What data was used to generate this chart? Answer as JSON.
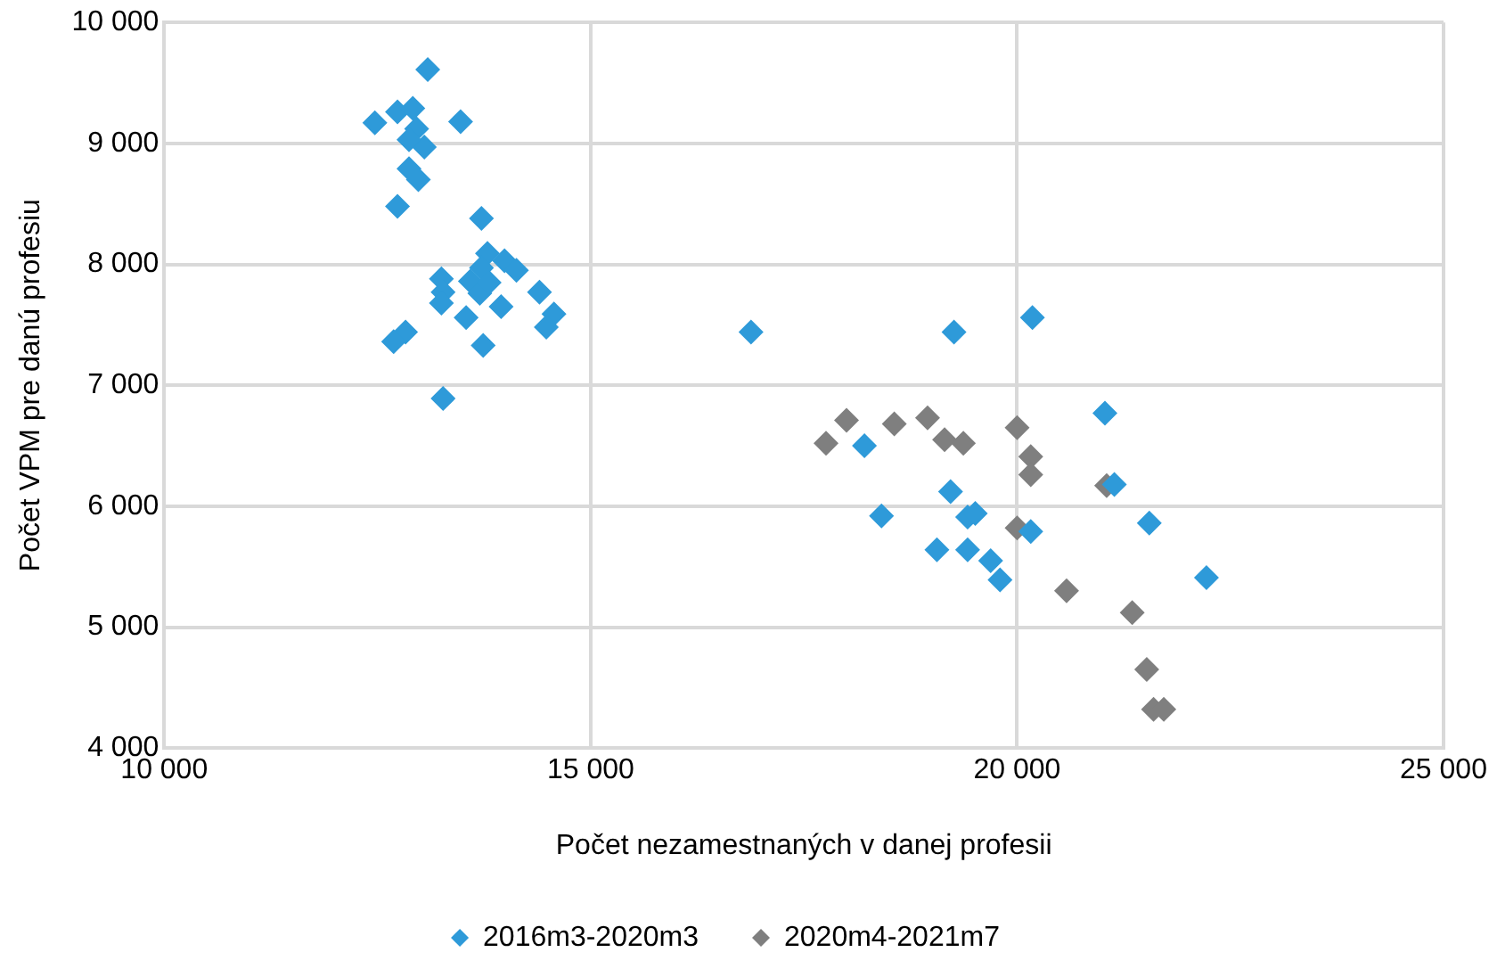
{
  "chart_data": {
    "type": "scatter",
    "xlabel": "Počet nezamestnaných v danej profesii",
    "ylabel": "Počet VPM pre danú profesiu",
    "xlim": [
      10000,
      25000
    ],
    "xticks": [
      {
        "value": 10000,
        "label": "10 000"
      },
      {
        "value": 15000,
        "label": "15 000"
      },
      {
        "value": 20000,
        "label": "20 000"
      },
      {
        "value": 25000,
        "label": "25 000"
      }
    ],
    "ylim": [
      4000,
      10000
    ],
    "yticks": [
      {
        "value": 4000,
        "label": "4 000"
      },
      {
        "value": 5000,
        "label": "5 000"
      },
      {
        "value": 6000,
        "label": "6 000"
      },
      {
        "value": 7000,
        "label": "7 000"
      },
      {
        "value": 8000,
        "label": "8 000"
      },
      {
        "value": 9000,
        "label": "9 000"
      },
      {
        "value": 10000,
        "label": "10 000"
      }
    ],
    "grid": true,
    "legend": "bottom",
    "marker": "diamond",
    "series": [
      {
        "name": "2016m3-2020m3",
        "color": "#2e9ad9",
        "x": [
          13090,
          12470,
          12735,
          12915,
          12960,
          13050,
          13475,
          12870,
          12735,
          12870,
          12980,
          13720,
          13250,
          13790,
          13990,
          14130,
          14400,
          14570,
          14480,
          13270,
          13250,
          13590,
          13700,
          13540,
          13950,
          12830,
          12690,
          13740,
          13270,
          13720,
          13810,
          16880,
          19260,
          20180,
          21030,
          18210,
          18410,
          19220,
          19420,
          19510,
          19060,
          19420,
          19690,
          19800,
          20160,
          21140,
          21550,
          22220
        ],
        "values": [
          9610,
          9170,
          9260,
          9290,
          9120,
          8970,
          9180,
          9030,
          8480,
          8790,
          8700,
          8380,
          7880,
          8090,
          8030,
          7950,
          7770,
          7590,
          7480,
          7770,
          7680,
          7860,
          7760,
          7560,
          7650,
          7440,
          7360,
          7330,
          6890,
          7970,
          7850,
          7440,
          7440,
          7560,
          6770,
          6500,
          5920,
          6120,
          5910,
          5940,
          5640,
          5640,
          5550,
          5390,
          5790,
          6180,
          5860,
          5410
        ]
      },
      {
        "name": "2020m4-2021m7",
        "color": "#7f7f7f",
        "x": [
          17760,
          18000,
          18560,
          18950,
          19150,
          19370,
          20000,
          20160,
          20160,
          21050,
          20000,
          20580,
          21350,
          21520,
          21600,
          21720
        ],
        "values": [
          6520,
          6710,
          6680,
          6730,
          6550,
          6520,
          6650,
          6410,
          6260,
          6170,
          5820,
          5300,
          5120,
          4650,
          4320,
          4320
        ]
      }
    ]
  }
}
